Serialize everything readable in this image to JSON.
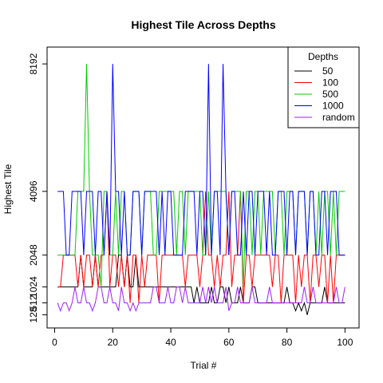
{
  "chart_data": {
    "type": "line",
    "title": "Highest Tile Across Depths",
    "xlabel": "Trial #",
    "ylabel": "Highest Tile",
    "xlim": [
      0,
      101
    ],
    "ylim": [
      40,
      8400
    ],
    "x_ticks": [
      0,
      20,
      40,
      60,
      80,
      100
    ],
    "y_ticks": [
      128,
      512,
      1024,
      2048,
      4096,
      8192
    ],
    "y_tick_labels": [
      "128",
      "512",
      "1024",
      "2048",
      "4096",
      "8192"
    ],
    "grid": false,
    "legend": {
      "title": "Depths",
      "position": "top-right"
    },
    "x_start": 1,
    "series": [
      {
        "name": "50",
        "color": "#000000",
        "values": [
          1024,
          1024,
          1024,
          1024,
          1024,
          1024,
          1024,
          1024,
          2048,
          1024,
          1024,
          1024,
          1024,
          2048,
          1024,
          1024,
          1024,
          1024,
          1024,
          1024,
          1024,
          2048,
          2048,
          1024,
          2048,
          1024,
          1024,
          2048,
          1024,
          1024,
          1024,
          1024,
          1024,
          1024,
          1024,
          1024,
          1024,
          1024,
          1024,
          1024,
          1024,
          1024,
          1024,
          1024,
          1024,
          1024,
          1024,
          512,
          1024,
          512,
          512,
          512,
          512,
          1024,
          512,
          512,
          1024,
          1024,
          512,
          1024,
          512,
          512,
          512,
          1024,
          512,
          512,
          512,
          1024,
          1024,
          512,
          512,
          512,
          512,
          512,
          512,
          512,
          512,
          512,
          512,
          1024,
          512,
          512,
          256,
          512,
          256,
          512,
          128,
          512,
          512,
          512,
          512,
          512,
          1024,
          512,
          512,
          512,
          512,
          512,
          512,
          512
        ]
      },
      {
        "name": "100",
        "color": "#ff0000",
        "values": [
          1024,
          1024,
          2048,
          2048,
          2048,
          2048,
          2048,
          1024,
          2048,
          1024,
          2048,
          2048,
          1024,
          2048,
          1024,
          2048,
          2048,
          4096,
          1024,
          2048,
          2048,
          1024,
          2048,
          1024,
          2048,
          512,
          2048,
          2048,
          512,
          2048,
          1024,
          2048,
          2048,
          2048,
          2048,
          512,
          2048,
          2048,
          2048,
          2048,
          2048,
          2048,
          2048,
          2048,
          1024,
          2048,
          2048,
          2048,
          2048,
          1024,
          2048,
          4096,
          2048,
          2048,
          1024,
          2048,
          1024,
          2048,
          2048,
          4096,
          1024,
          2048,
          2048,
          4096,
          512,
          2048,
          2048,
          1024,
          2048,
          2048,
          2048,
          2048,
          2048,
          2048,
          1024,
          2048,
          2048,
          512,
          2048,
          2048,
          2048,
          2048,
          512,
          2048,
          1024,
          2048,
          2048,
          512,
          2048,
          2048,
          1024,
          2048,
          2048,
          512,
          2048,
          512,
          2048,
          2048,
          2048,
          2048
        ]
      },
      {
        "name": "500",
        "color": "#00cd00",
        "values": [
          2048,
          2048,
          2048,
          2048,
          2048,
          2048,
          2048,
          4096,
          4096,
          4096,
          8192,
          4096,
          2048,
          2048,
          2048,
          1024,
          4096,
          4096,
          2048,
          2048,
          4096,
          2048,
          4096,
          4096,
          2048,
          2048,
          4096,
          4096,
          4096,
          2048,
          4096,
          4096,
          4096,
          2048,
          2048,
          4096,
          4096,
          4096,
          4096,
          4096,
          4096,
          2048,
          4096,
          4096,
          2048,
          4096,
          4096,
          4096,
          4096,
          4096,
          2048,
          2048,
          4096,
          2048,
          4096,
          4096,
          4096,
          4096,
          4096,
          2048,
          4096,
          4096,
          4096,
          4096,
          1024,
          4096,
          4096,
          2048,
          4096,
          4096,
          2048,
          4096,
          4096,
          4096,
          4096,
          2048,
          4096,
          4096,
          2048,
          4096,
          4096,
          4096,
          2048,
          4096,
          4096,
          4096,
          2048,
          4096,
          4096,
          2048,
          4096,
          2048,
          4096,
          4096,
          2048,
          4096,
          2048,
          4096,
          4096,
          4096
        ]
      },
      {
        "name": "1000",
        "color": "#0000ff",
        "values": [
          4096,
          4096,
          4096,
          2048,
          2048,
          4096,
          4096,
          4096,
          4096,
          2048,
          4096,
          4096,
          4096,
          2048,
          4096,
          4096,
          2048,
          4096,
          2048,
          8192,
          4096,
          4096,
          2048,
          4096,
          2048,
          2048,
          4096,
          4096,
          4096,
          2048,
          4096,
          4096,
          4096,
          4096,
          4096,
          2048,
          4096,
          2048,
          4096,
          4096,
          2048,
          2048,
          2048,
          2048,
          4096,
          4096,
          4096,
          4096,
          2048,
          4096,
          4096,
          2048,
          8192,
          2048,
          4096,
          4096,
          2048,
          8192,
          4096,
          2048,
          4096,
          4096,
          2048,
          2048,
          4096,
          2048,
          4096,
          4096,
          2048,
          4096,
          4096,
          4096,
          2048,
          4096,
          2048,
          2048,
          4096,
          4096,
          4096,
          2048,
          4096,
          4096,
          2048,
          4096,
          4096,
          4096,
          2048,
          4096,
          4096,
          2048,
          2048,
          4096,
          4096,
          2048,
          4096,
          4096,
          4096,
          2048,
          2048,
          2048
        ]
      },
      {
        "name": "random",
        "color": "#a020f0",
        "values": [
          512,
          256,
          512,
          512,
          256,
          512,
          1024,
          512,
          512,
          1024,
          512,
          512,
          256,
          512,
          1024,
          1024,
          512,
          512,
          1024,
          512,
          512,
          256,
          1024,
          512,
          512,
          256,
          512,
          256,
          512,
          512,
          512,
          512,
          512,
          1024,
          1024,
          512,
          512,
          512,
          1024,
          512,
          512,
          1024,
          1024,
          512,
          1024,
          512,
          512,
          512,
          512,
          512,
          1024,
          512,
          1024,
          512,
          1024,
          512,
          512,
          512,
          1024,
          256,
          512,
          512,
          1024,
          512,
          512,
          512,
          512,
          1024,
          512,
          512,
          512,
          512,
          512,
          1024,
          512,
          512,
          512,
          512,
          512,
          512,
          512,
          512,
          512,
          512,
          512,
          1024,
          512,
          512,
          1024,
          512,
          512,
          512,
          512,
          512,
          512,
          512,
          1024,
          512,
          512,
          1024
        ]
      }
    ]
  }
}
